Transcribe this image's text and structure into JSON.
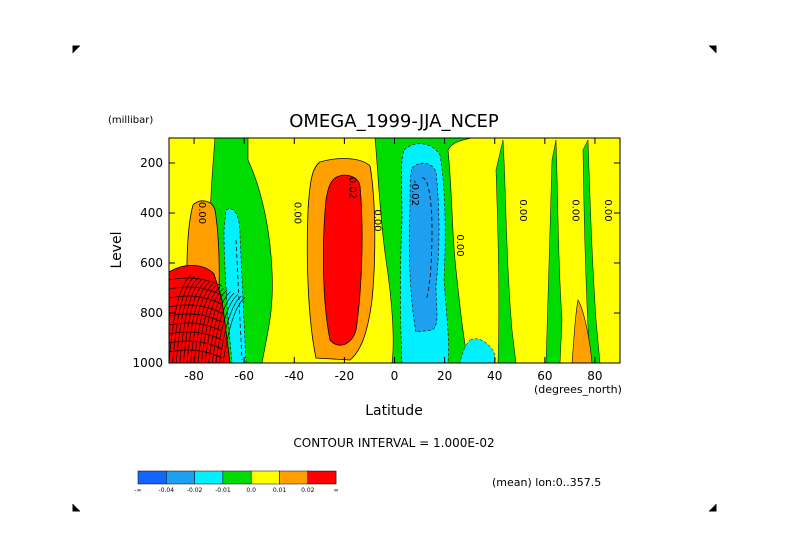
{
  "chart_data": {
    "type": "heatmap",
    "title": "OMEGA_1999-JJA_NCEP",
    "xlabel": "Latitude",
    "ylabel": "Level",
    "x_units": "(degrees_north)",
    "y_units": "(millibar)",
    "xlim": [
      -90,
      90
    ],
    "ylim": [
      1000,
      100
    ],
    "x_ticks": [
      "-80",
      "-60",
      "-40",
      "-20",
      "0",
      "20",
      "40",
      "60",
      "80"
    ],
    "x_tick_values": [
      -80,
      -60,
      -40,
      -20,
      0,
      20,
      40,
      60,
      80
    ],
    "y_ticks": [
      "200",
      "400",
      "600",
      "800",
      "1000"
    ],
    "y_tick_values": [
      200,
      400,
      600,
      800,
      1000
    ],
    "contour_interval": "CONTOUR INTERVAL = 1.000E-02",
    "annotation": "(mean) lon:0..357.5",
    "colorbar": {
      "colors": [
        "#1464ff",
        "#1ea0f0",
        "#00f0ff",
        "#00dc00",
        "#ffff00",
        "#ffa000",
        "#ff0000"
      ],
      "labels": [
        "-∞",
        "-0.04",
        "-0.02",
        "-0.01",
        "0.0",
        "0.01",
        "0.02",
        "∞"
      ]
    },
    "contour_labels": [
      {
        "text": "0.00",
        "lat": -78,
        "p": 400
      },
      {
        "text": "0.00",
        "lat": -40,
        "p": 400
      },
      {
        "text": "0.02",
        "lat": -18,
        "p": 300
      },
      {
        "text": "0.00",
        "lat": -8,
        "p": 430
      },
      {
        "text": "-0.02",
        "lat": 7,
        "p": 320
      },
      {
        "text": "0.00",
        "lat": 25,
        "p": 530
      },
      {
        "text": "0.00",
        "lat": 50,
        "p": 390
      },
      {
        "text": "0.00",
        "lat": 71,
        "p": 390
      },
      {
        "text": "0.00",
        "lat": 84,
        "p": 390
      }
    ],
    "regions": [
      {
        "level": "0.01",
        "color": "#ffff00",
        "lat": [
          -90,
          -64
        ],
        "p": [
          110,
          1000
        ]
      },
      {
        "level": "0.01",
        "color": "#ffff00",
        "lat": [
          -48,
          -2
        ],
        "p": [
          110,
          1000
        ]
      },
      {
        "level": "0.01",
        "color": "#ffff00",
        "lat": [
          24,
          90
        ],
        "p": [
          110,
          1000
        ]
      },
      {
        "level": "0.02",
        "color": "#ffa000",
        "lat": [
          -35,
          -11
        ],
        "p": [
          180,
          980
        ]
      },
      {
        "level": "0.02",
        "color": "#ffa000",
        "lat": [
          -83,
          -72
        ],
        "p": [
          330,
          900
        ]
      },
      {
        "level": "0.03",
        "color": "#ff0000",
        "lat": [
          -30,
          -14
        ],
        "p": [
          230,
          950
        ]
      },
      {
        "level": "0.03",
        "color": "#ff0000",
        "lat": [
          -90,
          -70
        ],
        "p": [
          650,
          1000
        ]
      },
      {
        "level": "-0.01",
        "color": "#00f0ff",
        "lat": [
          -73,
          -64
        ],
        "p": [
          380,
          1000
        ]
      },
      {
        "level": "-0.01",
        "color": "#00f0ff",
        "lat": [
          2,
          22
        ],
        "p": [
          120,
          1000
        ]
      },
      {
        "level": "-0.02",
        "color": "#1ea0f0",
        "lat": [
          5,
          17
        ],
        "p": [
          190,
          840
        ]
      }
    ]
  }
}
